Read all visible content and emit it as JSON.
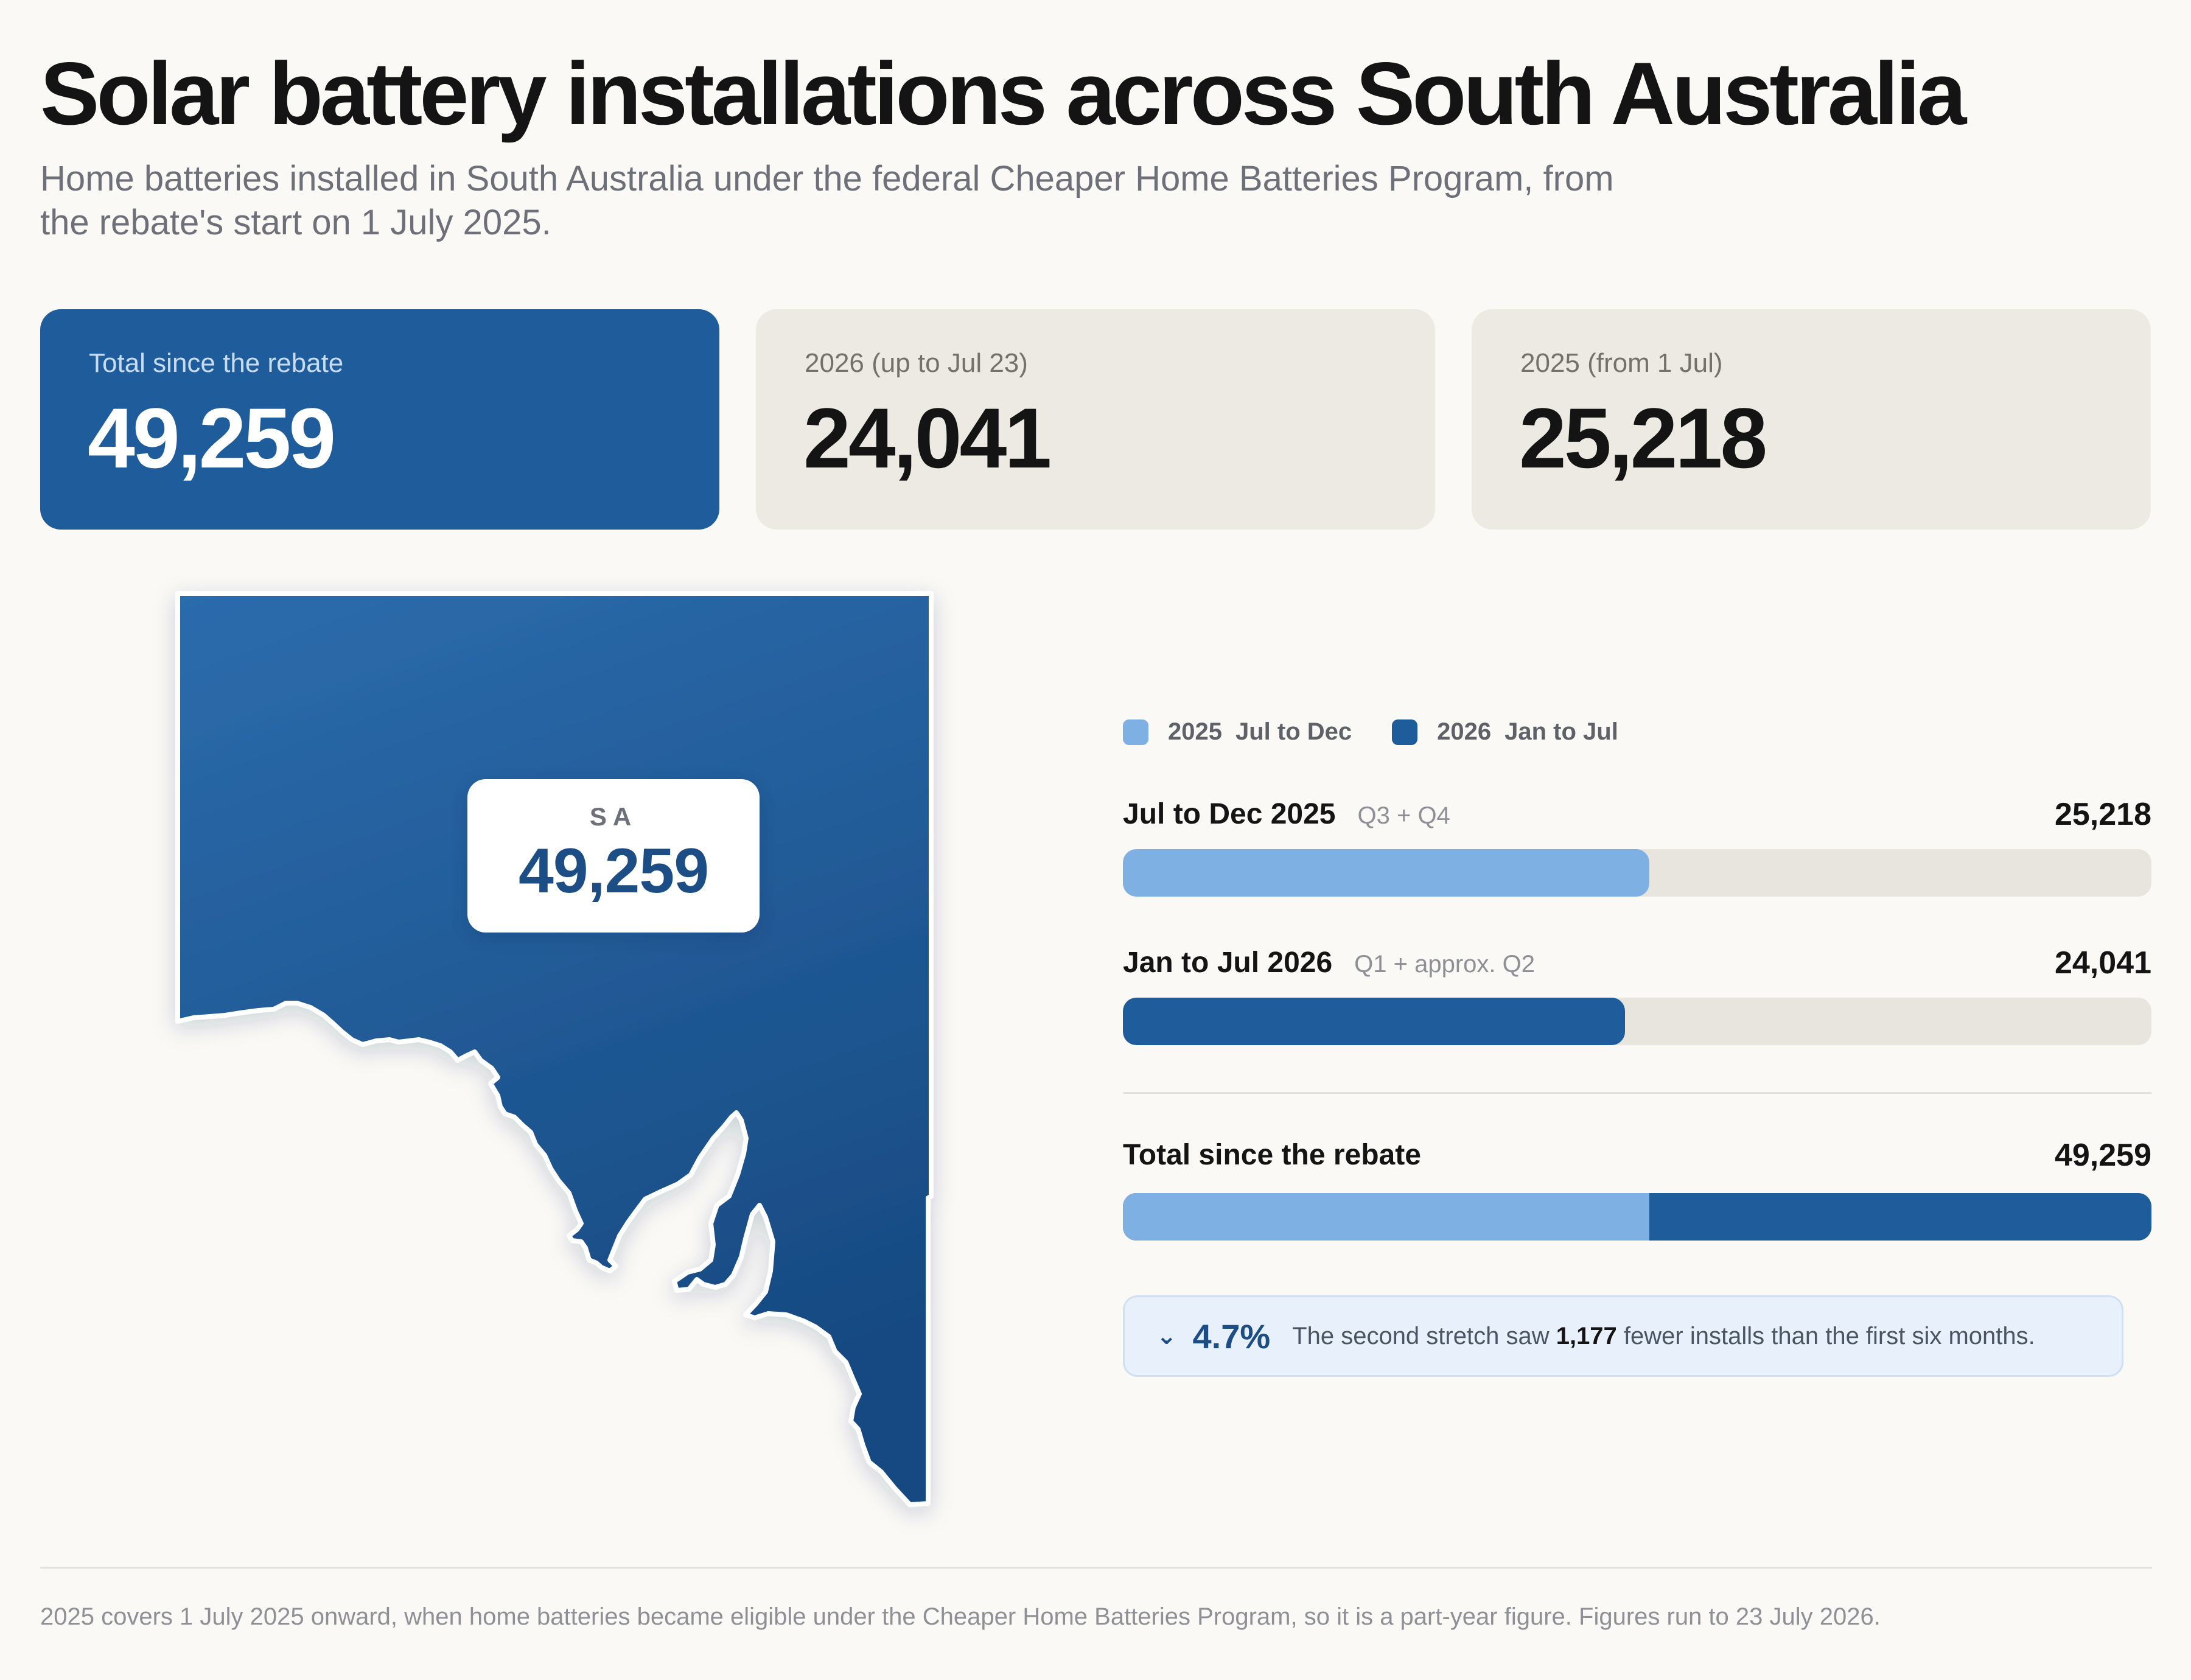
{
  "title": "Solar battery installations across South Australia",
  "subtitle": "Home batteries installed in South Australia under the federal Cheaper Home Batteries Program, from the rebate's start on 1 July 2025.",
  "cards": [
    {
      "label": "Total since the rebate",
      "value": "49,259"
    },
    {
      "label": "2026 (up to Jul 23)",
      "value": "24,041"
    },
    {
      "label": "2025 (from 1 Jul)",
      "value": "25,218"
    }
  ],
  "map": {
    "state": "SA",
    "value": "49,259"
  },
  "colors": {
    "series_2025": "#7eb0e3",
    "series_2026": "#1f5c9c",
    "track": "#e8e4de"
  },
  "chart_data": {
    "type": "bar",
    "orientation": "horizontal",
    "legend": [
      {
        "year": "2025",
        "period": "Jul to Dec"
      },
      {
        "year": "2026",
        "period": "Jan to Jul"
      }
    ],
    "rows": [
      {
        "label": "Jul to Dec 2025",
        "note": "Q3 + Q4",
        "value": 25218,
        "display": "25,218",
        "series": "2025"
      },
      {
        "label": "Jan to Jul 2026",
        "note": "Q1 + approx. Q2",
        "value": 24041,
        "display": "24,041",
        "series": "2026"
      }
    ],
    "total": {
      "label": "Total since the rebate",
      "value": 49259,
      "display": "49,259",
      "parts": [
        25218,
        24041
      ]
    },
    "xlim": [
      0,
      49259
    ]
  },
  "callout": {
    "percent": "4.7%",
    "text_before": "The second stretch saw",
    "difference": "1,177",
    "text_after": "fewer installs than the first six months."
  },
  "footnote": "2025 covers 1 July 2025 onward, when home batteries became eligible under the Cheaper Home Batteries Program, so it is a part-year figure. Figures run to 23 July 2026."
}
